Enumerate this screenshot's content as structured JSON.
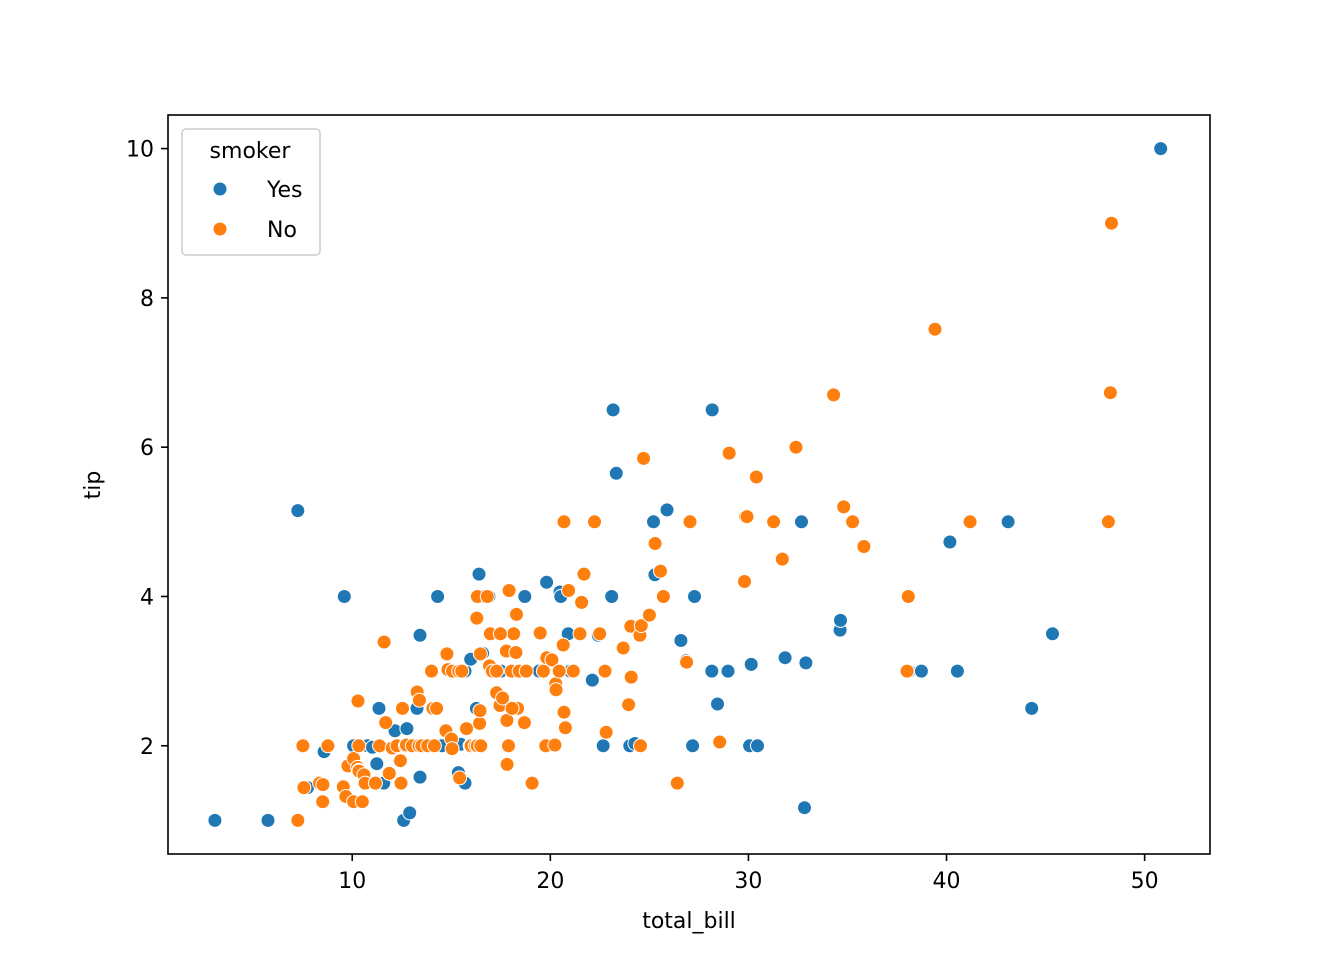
{
  "chart_data": {
    "type": "scatter",
    "title": "",
    "xlabel": "total_bill",
    "ylabel": "tip",
    "xlim": [
      0.7,
      53.3
    ],
    "ylim": [
      0.55,
      10.45
    ],
    "xticks": [
      10,
      20,
      30,
      40,
      50
    ],
    "yticks": [
      2,
      4,
      6,
      8,
      10
    ],
    "xtick_labels": [
      "10",
      "20",
      "30",
      "40",
      "50"
    ],
    "ytick_labels": [
      "2",
      "4",
      "6",
      "8",
      "10"
    ],
    "grid": false,
    "legend": {
      "title": "smoker",
      "placement": "top-left",
      "entries": [
        "Yes",
        "No"
      ]
    },
    "series": [
      {
        "name": "Yes",
        "color": "#1f77b4",
        "points": [
          [
            3.07,
            1.0
          ],
          [
            5.75,
            1.0
          ],
          [
            7.25,
            5.15
          ],
          [
            7.74,
            1.44
          ],
          [
            8.58,
            1.92
          ],
          [
            9.6,
            4.0
          ],
          [
            10.07,
            2.0
          ],
          [
            10.34,
            2.0
          ],
          [
            10.63,
            1.61
          ],
          [
            10.77,
            2.0
          ],
          [
            11.02,
            1.98
          ],
          [
            11.24,
            1.76
          ],
          [
            11.35,
            2.5
          ],
          [
            11.59,
            1.5
          ],
          [
            12.16,
            2.2
          ],
          [
            12.6,
            1.0
          ],
          [
            12.76,
            2.23
          ],
          [
            12.9,
            1.1
          ],
          [
            13.0,
            2.0
          ],
          [
            13.13,
            2.0
          ],
          [
            13.27,
            2.5
          ],
          [
            13.42,
            3.48
          ],
          [
            13.42,
            1.58
          ],
          [
            13.81,
            2.0
          ],
          [
            14.31,
            4.0
          ],
          [
            14.52,
            2.0
          ],
          [
            15.36,
            1.64
          ],
          [
            15.48,
            2.02
          ],
          [
            15.69,
            1.5
          ],
          [
            15.69,
            3.0
          ],
          [
            15.98,
            3.16
          ],
          [
            16.27,
            2.5
          ],
          [
            16.4,
            4.3
          ],
          [
            16.58,
            3.24
          ],
          [
            16.66,
            4.0
          ],
          [
            16.9,
            4.0
          ],
          [
            17.51,
            3.0
          ],
          [
            17.92,
            2.0
          ],
          [
            18.15,
            3.5
          ],
          [
            18.71,
            4.0
          ],
          [
            19.44,
            3.0
          ],
          [
            19.81,
            4.19
          ],
          [
            20.49,
            4.06
          ],
          [
            20.53,
            4.0
          ],
          [
            20.9,
            3.5
          ],
          [
            21.01,
            3.0
          ],
          [
            22.12,
            2.88
          ],
          [
            22.42,
            3.48
          ],
          [
            22.67,
            2.0
          ],
          [
            23.1,
            4.0
          ],
          [
            23.17,
            6.5
          ],
          [
            23.33,
            5.65
          ],
          [
            24.01,
            2.0
          ],
          [
            24.27,
            2.03
          ],
          [
            25.21,
            5.0
          ],
          [
            25.28,
            4.29
          ],
          [
            25.89,
            5.16
          ],
          [
            26.59,
            3.41
          ],
          [
            26.86,
            3.14
          ],
          [
            27.18,
            2.0
          ],
          [
            27.28,
            4.0
          ],
          [
            28.17,
            6.5
          ],
          [
            28.44,
            2.56
          ],
          [
            28.15,
            3.0
          ],
          [
            28.97,
            3.0
          ],
          [
            30.06,
            2.0
          ],
          [
            30.14,
            3.09
          ],
          [
            30.46,
            2.0
          ],
          [
            31.85,
            3.18
          ],
          [
            32.68,
            5.0
          ],
          [
            32.83,
            1.17
          ],
          [
            32.9,
            3.11
          ],
          [
            34.63,
            3.55
          ],
          [
            34.65,
            3.68
          ],
          [
            38.1,
            3.0
          ],
          [
            38.73,
            3.0
          ],
          [
            40.17,
            4.73
          ],
          [
            40.55,
            3.0
          ],
          [
            43.11,
            5.0
          ],
          [
            44.3,
            2.5
          ],
          [
            45.35,
            3.5
          ],
          [
            50.81,
            10.0
          ]
        ]
      },
      {
        "name": "No",
        "color": "#ff7f0e",
        "points": [
          [
            7.25,
            1.0
          ],
          [
            7.51,
            2.0
          ],
          [
            7.56,
            1.44
          ],
          [
            8.35,
            1.5
          ],
          [
            8.51,
            1.25
          ],
          [
            8.52,
            1.48
          ],
          [
            8.77,
            2.0
          ],
          [
            9.55,
            1.45
          ],
          [
            9.68,
            1.32
          ],
          [
            9.78,
            1.73
          ],
          [
            10.07,
            1.25
          ],
          [
            10.07,
            1.83
          ],
          [
            10.27,
            1.71
          ],
          [
            10.29,
            2.6
          ],
          [
            10.33,
            1.67
          ],
          [
            10.33,
            2.0
          ],
          [
            10.34,
            1.66
          ],
          [
            10.59,
            1.61
          ],
          [
            10.65,
            1.5
          ],
          [
            10.51,
            1.25
          ],
          [
            11.17,
            1.5
          ],
          [
            11.38,
            2.0
          ],
          [
            11.61,
            3.39
          ],
          [
            11.69,
            2.31
          ],
          [
            11.87,
            1.63
          ],
          [
            12.02,
            1.97
          ],
          [
            12.26,
            2.0
          ],
          [
            12.43,
            1.8
          ],
          [
            12.46,
            1.5
          ],
          [
            12.54,
            2.5
          ],
          [
            12.69,
            2.0
          ],
          [
            12.74,
            2.01
          ],
          [
            13.03,
            2.0
          ],
          [
            13.28,
            2.72
          ],
          [
            13.37,
            2.0
          ],
          [
            13.39,
            2.61
          ],
          [
            13.51,
            2.0
          ],
          [
            13.81,
            2.0
          ],
          [
            14.0,
            3.0
          ],
          [
            14.07,
            2.5
          ],
          [
            14.15,
            2.0
          ],
          [
            14.26,
            2.5
          ],
          [
            14.73,
            2.2
          ],
          [
            14.78,
            3.23
          ],
          [
            14.83,
            3.02
          ],
          [
            15.01,
            2.09
          ],
          [
            15.04,
            1.96
          ],
          [
            15.06,
            3.0
          ],
          [
            15.38,
            3.0
          ],
          [
            15.42,
            1.57
          ],
          [
            15.53,
            3.0
          ],
          [
            15.77,
            2.23
          ],
          [
            15.95,
            2.0
          ],
          [
            16.0,
            2.0
          ],
          [
            16.21,
            2.0
          ],
          [
            16.29,
            3.71
          ],
          [
            16.31,
            2.0
          ],
          [
            16.32,
            4.0
          ],
          [
            16.43,
            2.3
          ],
          [
            16.45,
            2.47
          ],
          [
            16.47,
            3.23
          ],
          [
            16.49,
            2.0
          ],
          [
            16.82,
            4.0
          ],
          [
            16.93,
            3.07
          ],
          [
            16.97,
            3.5
          ],
          [
            17.07,
            3.0
          ],
          [
            17.29,
            2.71
          ],
          [
            17.46,
            2.54
          ],
          [
            17.59,
            2.64
          ],
          [
            17.78,
            3.27
          ],
          [
            17.81,
            2.34
          ],
          [
            17.82,
            1.75
          ],
          [
            17.89,
            2.0
          ],
          [
            17.92,
            4.08
          ],
          [
            18.04,
            3.0
          ],
          [
            18.15,
            3.5
          ],
          [
            18.24,
            3.76
          ],
          [
            18.26,
            3.25
          ],
          [
            18.29,
            3.76
          ],
          [
            18.35,
            2.5
          ],
          [
            18.43,
            3.0
          ],
          [
            18.69,
            2.31
          ],
          [
            18.78,
            3.0
          ],
          [
            19.08,
            1.5
          ],
          [
            19.49,
            3.51
          ],
          [
            19.65,
            3.0
          ],
          [
            19.77,
            2.0
          ],
          [
            19.82,
            3.18
          ],
          [
            20.08,
            3.15
          ],
          [
            20.23,
            2.01
          ],
          [
            20.27,
            2.83
          ],
          [
            20.29,
            2.75
          ],
          [
            20.45,
            3.0
          ],
          [
            20.65,
            3.35
          ],
          [
            20.69,
            2.45
          ],
          [
            20.69,
            5.0
          ],
          [
            20.76,
            2.24
          ],
          [
            20.92,
            4.08
          ],
          [
            21.16,
            3.0
          ],
          [
            21.5,
            3.5
          ],
          [
            21.58,
            3.92
          ],
          [
            21.7,
            4.3
          ],
          [
            22.23,
            5.0
          ],
          [
            22.49,
            3.5
          ],
          [
            22.76,
            3.0
          ],
          [
            22.82,
            2.18
          ],
          [
            23.68,
            3.31
          ],
          [
            23.95,
            2.55
          ],
          [
            24.06,
            3.6
          ],
          [
            24.08,
            2.92
          ],
          [
            24.52,
            3.48
          ],
          [
            24.55,
            2.0
          ],
          [
            24.59,
            3.61
          ],
          [
            24.71,
            5.85
          ],
          [
            25.0,
            3.75
          ],
          [
            25.29,
            4.71
          ],
          [
            25.56,
            4.34
          ],
          [
            25.71,
            4.0
          ],
          [
            26.41,
            1.5
          ],
          [
            26.88,
            3.12
          ],
          [
            27.05,
            5.0
          ],
          [
            28.55,
            2.05
          ],
          [
            29.03,
            5.92
          ],
          [
            29.85,
            5.07
          ],
          [
            29.8,
            4.2
          ],
          [
            29.93,
            5.07
          ],
          [
            30.4,
            5.6
          ],
          [
            31.27,
            5.0
          ],
          [
            31.71,
            4.5
          ],
          [
            32.4,
            6.0
          ],
          [
            34.3,
            6.7
          ],
          [
            34.81,
            5.2
          ],
          [
            35.26,
            5.0
          ],
          [
            35.83,
            4.67
          ],
          [
            38.01,
            3.0
          ],
          [
            38.07,
            4.0
          ],
          [
            39.42,
            7.58
          ],
          [
            41.19,
            5.0
          ],
          [
            48.17,
            5.0
          ],
          [
            48.27,
            6.73
          ],
          [
            48.33,
            9.0
          ],
          [
            17.29,
            3.0
          ],
          [
            17.48,
            3.5
          ],
          [
            18.07,
            2.5
          ]
        ]
      }
    ]
  }
}
